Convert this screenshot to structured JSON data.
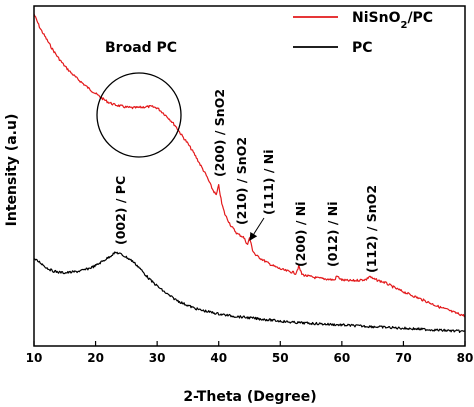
{
  "chart_data": {
    "type": "line",
    "xlabel": "2-Theta (Degree)",
    "ylabel": "Intensity (a.u)",
    "xlim": [
      10,
      80
    ],
    "ylim": [
      0,
      100
    ],
    "x_ticks": [
      "10",
      "20",
      "30",
      "40",
      "50",
      "60",
      "70",
      "80"
    ],
    "y_ticks_labeled": false,
    "grid": false,
    "legend_position": "top-right",
    "series": [
      {
        "name": "NiSnO2/PC",
        "color": "#e31a1c",
        "points": [
          [
            10,
            100
          ],
          [
            11,
            95.6
          ],
          [
            12,
            92.4
          ],
          [
            13,
            89.2
          ],
          [
            14,
            86.4
          ],
          [
            15,
            84
          ],
          [
            16,
            82
          ],
          [
            17,
            80.2
          ],
          [
            18,
            78.6
          ],
          [
            19,
            77
          ],
          [
            20,
            75.6
          ],
          [
            21,
            74.2
          ],
          [
            22,
            73
          ],
          [
            23,
            72.2
          ],
          [
            24,
            71.8
          ],
          [
            25,
            71.4
          ],
          [
            26,
            71.2
          ],
          [
            27,
            71.3
          ],
          [
            28,
            71.5
          ],
          [
            29,
            71.6
          ],
          [
            30,
            71.2
          ],
          [
            31,
            69.6
          ],
          [
            32,
            67.8
          ],
          [
            33,
            65.6
          ],
          [
            34,
            62.8
          ],
          [
            35,
            60.2
          ],
          [
            36,
            57.2
          ],
          [
            37,
            53.8
          ],
          [
            38,
            50.4
          ],
          [
            39,
            46.2
          ],
          [
            39.6,
            44.4
          ],
          [
            40,
            47.4
          ],
          [
            40.5,
            41.8
          ],
          [
            41,
            38.6
          ],
          [
            42,
            35
          ],
          [
            43,
            32.6
          ],
          [
            44,
            31.6
          ],
          [
            44.7,
            29.2
          ],
          [
            45,
            31.4
          ],
          [
            45.5,
            27.6
          ],
          [
            46,
            26
          ],
          [
            47,
            24.8
          ],
          [
            48,
            23.6
          ],
          [
            49,
            22.6
          ],
          [
            50,
            21.8
          ],
          [
            51,
            21.2
          ],
          [
            52,
            20.8
          ],
          [
            52.5,
            20.4
          ],
          [
            53,
            22.6
          ],
          [
            53.5,
            20.2
          ],
          [
            54,
            19.8
          ],
          [
            55,
            19.4
          ],
          [
            56,
            19
          ],
          [
            57,
            18.8
          ],
          [
            58,
            18.6
          ],
          [
            58.8,
            18.4
          ],
          [
            59.2,
            19.6
          ],
          [
            60,
            18.4
          ],
          [
            61,
            18.2
          ],
          [
            62,
            18.2
          ],
          [
            63,
            18.4
          ],
          [
            64,
            18.6
          ],
          [
            64.5,
            19.6
          ],
          [
            65,
            18.8
          ],
          [
            66,
            18.2
          ],
          [
            67,
            17.6
          ],
          [
            68,
            16.6
          ],
          [
            69,
            15.6
          ],
          [
            70,
            14.8
          ],
          [
            71,
            14
          ],
          [
            72,
            13.2
          ],
          [
            73,
            12.4
          ],
          [
            74,
            11.6
          ],
          [
            75,
            10.8
          ],
          [
            76,
            10
          ],
          [
            77,
            9.4
          ],
          [
            78,
            8.6
          ],
          [
            79,
            8
          ],
          [
            80,
            7.4
          ]
        ]
      },
      {
        "name": "PC",
        "color": "#000000",
        "points": [
          [
            10,
            24.8
          ],
          [
            11,
            23.8
          ],
          [
            12,
            22.2
          ],
          [
            13,
            21.2
          ],
          [
            14,
            20.8
          ],
          [
            15,
            20.6
          ],
          [
            16,
            20.8
          ],
          [
            17,
            21
          ],
          [
            18,
            21.4
          ],
          [
            19,
            22
          ],
          [
            20,
            22.8
          ],
          [
            21,
            24
          ],
          [
            22,
            25.2
          ],
          [
            23,
            26.6
          ],
          [
            23.5,
            26.8
          ],
          [
            24,
            26.4
          ],
          [
            25,
            25.4
          ],
          [
            26,
            24.2
          ],
          [
            27,
            22.4
          ],
          [
            28,
            20.2
          ],
          [
            29,
            18.2
          ],
          [
            30,
            16.6
          ],
          [
            31,
            15
          ],
          [
            32,
            13.6
          ],
          [
            33,
            12.4
          ],
          [
            34,
            11.4
          ],
          [
            35,
            10.6
          ],
          [
            36,
            9.8
          ],
          [
            37,
            9.2
          ],
          [
            38,
            8.8
          ],
          [
            39,
            8.4
          ],
          [
            40,
            8
          ],
          [
            42,
            7.4
          ],
          [
            44,
            7
          ],
          [
            46,
            6.6
          ],
          [
            48,
            6.2
          ],
          [
            50,
            5.8
          ],
          [
            52,
            5.4
          ],
          [
            54,
            5.2
          ],
          [
            56,
            5
          ],
          [
            58,
            4.8
          ],
          [
            60,
            4.6
          ],
          [
            62,
            4.4
          ],
          [
            64,
            4.2
          ],
          [
            66,
            4
          ],
          [
            68,
            3.8
          ],
          [
            70,
            3.6
          ],
          [
            72,
            3.4
          ],
          [
            74,
            3.2
          ],
          [
            76,
            3
          ],
          [
            78,
            2.8
          ],
          [
            80,
            2.6
          ]
        ]
      }
    ],
    "annotations": {
      "broad_pc": "Broad PC",
      "peaks": [
        {
          "label": "(002) / PC",
          "x": 23.7,
          "y": 36
        },
        {
          "label": "(200) / SnO2",
          "x": 39.6,
          "y": 56
        },
        {
          "label": "(210) / SnO2",
          "x": 42.2,
          "y": 42
        },
        {
          "label": "(111) / Ni",
          "x": 45.6,
          "y": 44
        },
        {
          "label": "(200) / Ni",
          "x": 52.8,
          "y": 28
        },
        {
          "label": "(012) / Ni",
          "x": 59.0,
          "y": 28
        },
        {
          "label": "(112) / SnO2",
          "x": 64.6,
          "y": 28
        }
      ]
    }
  }
}
